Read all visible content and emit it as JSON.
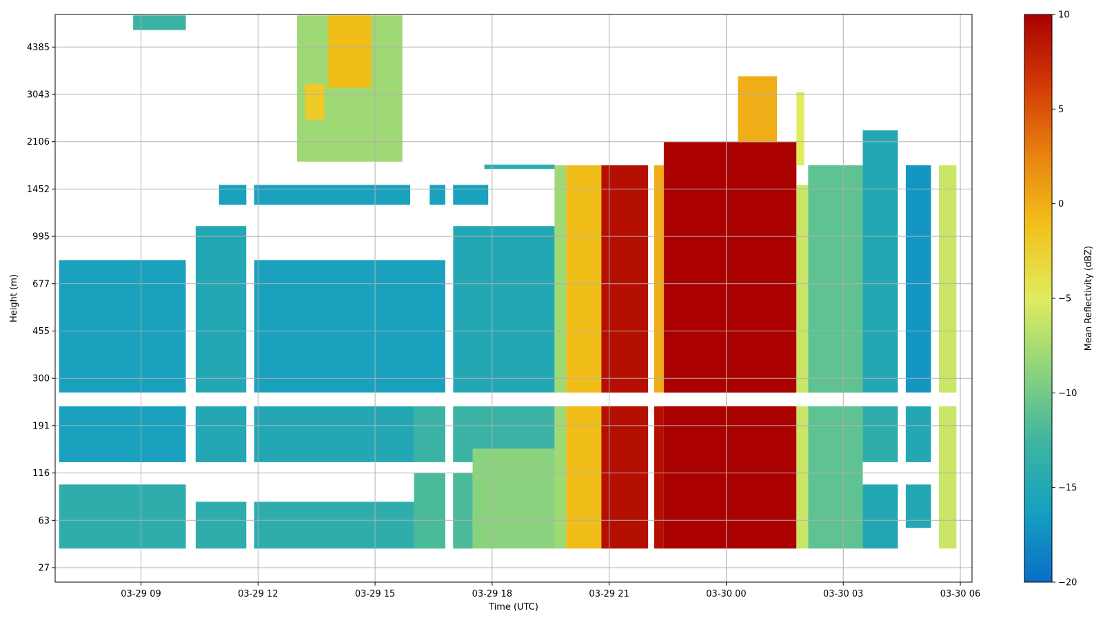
{
  "chart_data": {
    "type": "heatmap",
    "title": "",
    "xlabel": "Time (UTC)",
    "ylabel": "Height (m)",
    "x_tick_labels": [
      "03-29 09",
      "03-29 12",
      "03-29 15",
      "03-29 18",
      "03-29 21",
      "03-30 00",
      "03-30 03",
      "03-30 06"
    ],
    "x_tick_hours": [
      9,
      12,
      15,
      18,
      21,
      24,
      27,
      30
    ],
    "x_range_hours": [
      6.8,
      30.3
    ],
    "y_tick_labels": [
      "27",
      "63",
      "116",
      "191",
      "300",
      "455",
      "677",
      "995",
      "1452",
      "2106",
      "3043",
      "4385"
    ],
    "y_scale": "nonlinear (evenly spaced tick heights)",
    "y_range_m": [
      27,
      5600
    ],
    "grid": true,
    "colorbar": {
      "label": "Mean Reflectivity (dBZ)",
      "ticks": [
        "10",
        "5",
        "0",
        "−5",
        "−10",
        "−15",
        "−20"
      ],
      "tick_values": [
        10,
        5,
        0,
        -5,
        -10,
        -15,
        -20
      ],
      "range": [
        -20,
        10
      ],
      "colormap": [
        "#0a6ec8",
        "#16a0c0",
        "#3fb6a0",
        "#8fd47c",
        "#e0ec60",
        "#f2c21a",
        "#e88410",
        "#d23a06",
        "#aa0000"
      ]
    },
    "data_gaps_hours": [
      [
        10.15,
        10.4
      ],
      [
        11.7,
        11.9
      ],
      [
        16.8,
        17.0
      ],
      [
        22.0,
        22.15
      ],
      [
        28.4,
        28.6
      ],
      [
        29.25,
        29.45
      ]
    ],
    "gap_height_band_m": [
      230,
      262
    ],
    "regions": [
      {
        "t": [
          6.9,
          10.15
        ],
        "h": [
          262,
          820
        ],
        "v": -16
      },
      {
        "t": [
          10.4,
          11.7
        ],
        "h": [
          262,
          1080
        ],
        "v": -15
      },
      {
        "t": [
          11.9,
          16.8
        ],
        "h": [
          262,
          820
        ],
        "v": -16
      },
      {
        "t": [
          17.0,
          19.6
        ],
        "h": [
          262,
          1080
        ],
        "v": -15
      },
      {
        "t": [
          6.9,
          11.7
        ],
        "h": [
          130,
          230
        ],
        "v": -16
      },
      {
        "t": [
          10.4,
          16.0
        ],
        "h": [
          130,
          230
        ],
        "v": -15
      },
      {
        "t": [
          16.0,
          19.6
        ],
        "h": [
          130,
          230
        ],
        "v": -13
      },
      {
        "t": [
          6.9,
          10.2
        ],
        "h": [
          38,
          100
        ],
        "v": -14
      },
      {
        "t": [
          10.4,
          16.0
        ],
        "h": [
          38,
          80
        ],
        "v": -14
      },
      {
        "t": [
          16.0,
          17.5
        ],
        "h": [
          38,
          116
        ],
        "v": -12
      },
      {
        "t": [
          17.5,
          19.6
        ],
        "h": [
          38,
          150
        ],
        "v": -9
      },
      {
        "t": [
          19.6,
          19.9
        ],
        "h": [
          38,
          1750
        ],
        "v": -8
      },
      {
        "t": [
          19.9,
          20.8
        ],
        "h": [
          38,
          1750
        ],
        "v": -1
      },
      {
        "t": [
          20.8,
          22.0
        ],
        "h": [
          38,
          1750
        ],
        "v": 9
      },
      {
        "t": [
          22.15,
          22.4
        ],
        "h": [
          262,
          1750
        ],
        "v": 0
      },
      {
        "t": [
          22.15,
          22.4
        ],
        "h": [
          38,
          230
        ],
        "v": 9
      },
      {
        "t": [
          22.4,
          25.8
        ],
        "h": [
          38,
          1750
        ],
        "v": 10
      },
      {
        "t": [
          22.4,
          25.8
        ],
        "h": [
          1750,
          2100
        ],
        "v": 10
      },
      {
        "t": [
          24.3,
          25.3
        ],
        "h": [
          2100,
          3500
        ],
        "v": 0
      },
      {
        "t": [
          25.8,
          26.0
        ],
        "h": [
          1750,
          3100
        ],
        "v": -5
      },
      {
        "t": [
          25.8,
          26.1
        ],
        "h": [
          38,
          1500
        ],
        "v": -6
      },
      {
        "t": [
          26.1,
          27.5
        ],
        "h": [
          38,
          1750
        ],
        "v": -11
      },
      {
        "t": [
          27.5,
          28.4
        ],
        "h": [
          262,
          2300
        ],
        "v": -15
      },
      {
        "t": [
          27.5,
          28.4
        ],
        "h": [
          130,
          230
        ],
        "v": -14
      },
      {
        "t": [
          27.5,
          28.4
        ],
        "h": [
          38,
          100
        ],
        "v": -15
      },
      {
        "t": [
          28.6,
          29.25
        ],
        "h": [
          262,
          1750
        ],
        "v": -17
      },
      {
        "t": [
          28.6,
          29.25
        ],
        "h": [
          130,
          230
        ],
        "v": -15
      },
      {
        "t": [
          28.6,
          29.25
        ],
        "h": [
          55,
          100
        ],
        "v": -15
      },
      {
        "t": [
          29.45,
          29.9
        ],
        "h": [
          38,
          1750
        ],
        "v": -6
      },
      {
        "t": [
          13.0,
          15.7
        ],
        "h": [
          1800,
          5600
        ],
        "v": -8
      },
      {
        "t": [
          13.8,
          14.9
        ],
        "h": [
          3200,
          5600
        ],
        "v": -1
      },
      {
        "t": [
          13.2,
          13.7
        ],
        "h": [
          2500,
          3300
        ],
        "v": -2
      },
      {
        "t": [
          8.8,
          10.2
        ],
        "h": [
          5000,
          5600
        ],
        "v": -13
      },
      {
        "t": [
          11.0,
          15.9
        ],
        "h": [
          1280,
          1500
        ],
        "v": -16
      },
      {
        "t": [
          16.4,
          17.9
        ],
        "h": [
          1280,
          1500
        ],
        "v": -16
      },
      {
        "t": [
          17.8,
          19.6
        ],
        "h": [
          1700,
          1760
        ],
        "v": -14
      }
    ]
  }
}
